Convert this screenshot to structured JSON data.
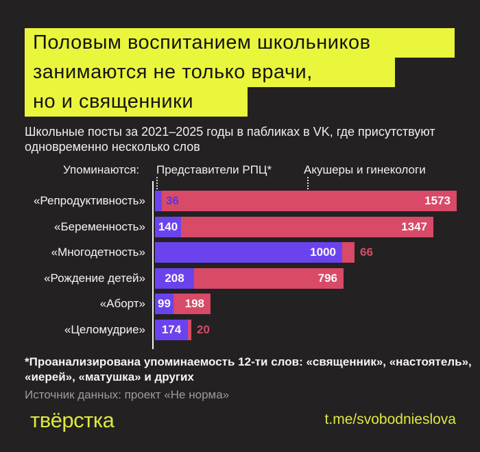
{
  "page": {
    "background_color": "#242122",
    "accent_yellow": "#E9F63C",
    "bar_purple": "#6B43EE",
    "bar_pink": "#D84A67"
  },
  "title": {
    "lines": [
      "Половым воспитанием школьников",
      "занимаются не только врачи,",
      "но и священники"
    ]
  },
  "subtitle": {
    "lines": [
      "Школьные посты за 2021–2025 годы в пабликах в VK, где присутствуют",
      "одновременно несколько слов"
    ]
  },
  "legend": {
    "intro": "Упоминаются:",
    "series1": "Представители РПЦ*",
    "series2": "Акушеры и гинекологи"
  },
  "chart_data": {
    "type": "bar",
    "orientation": "horizontal-stacked",
    "title": "Школьные посты за 2021–2025 годы в пабликах в VK, где присутствуют одновременно несколько слов",
    "categories": [
      "«Репродуктивность»",
      "«Беременность»",
      "«Многодетность»",
      "«Рождение детей»",
      "«Аборт»",
      "«Целомудрие»"
    ],
    "series": [
      {
        "name": "Представители РПЦ*",
        "color": "#6B43EE",
        "values": [
          36,
          140,
          1000,
          208,
          99,
          174
        ]
      },
      {
        "name": "Акушеры и гинекологи",
        "color": "#D84A67",
        "values": [
          1573,
          1347,
          66,
          796,
          198,
          20
        ]
      }
    ],
    "xlim": [
      0,
      1609
    ],
    "value_labels": true,
    "grid": false,
    "legend_position": "top"
  },
  "footnote": {
    "lines": [
      "*Проанализирована упоминаемость 12-ти слов: «священник», «настоятель»,",
      "«иерей», «матушка» и других"
    ]
  },
  "source": "Источник данных: проект «Не норма»",
  "footer": {
    "logo": "твёрстка",
    "link": "t.me/svobodnieslova"
  }
}
